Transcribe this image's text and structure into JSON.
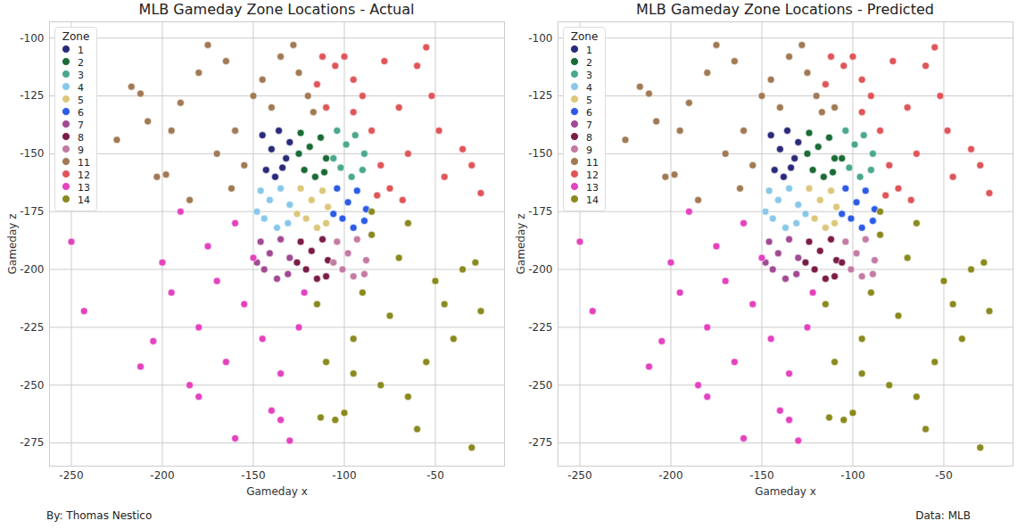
{
  "chart_data": [
    {
      "type": "scatter",
      "title": "MLB Gameday Zone Locations - Actual",
      "x_label": "Gameday x",
      "y_label": "Gameday z",
      "xlim": [
        -262,
        -12
      ],
      "ylim": [
        -285,
        -93
      ],
      "xticks": [
        -250,
        -200,
        -150,
        -100,
        -50
      ],
      "yticks": [
        -275,
        -250,
        -225,
        -200,
        -175,
        -150,
        -125,
        -100
      ],
      "grid": true,
      "legend": "upper left",
      "legend_title": "Zone",
      "series": [
        {
          "name": "1",
          "color": "#2b2a7a",
          "x": [
            -145,
            -140,
            -136,
            -132,
            -143,
            -138,
            -130,
            -134
          ],
          "y": [
            -142,
            -148,
            -140,
            -152,
            -157,
            -160,
            -145,
            -156
          ]
        },
        {
          "name": "2",
          "color": "#1a6b35",
          "x": [
            -124,
            -119,
            -113,
            -110,
            -122,
            -116,
            -111,
            -125
          ],
          "y": [
            -141,
            -147,
            -143,
            -152,
            -157,
            -160,
            -158,
            -150
          ]
        },
        {
          "name": "3",
          "color": "#4aa88e",
          "x": [
            -104,
            -99,
            -94,
            -89,
            -102,
            -96,
            -90,
            -106
          ],
          "y": [
            -140,
            -146,
            -142,
            -150,
            -156,
            -160,
            -157,
            -152
          ]
        },
        {
          "name": "4",
          "color": "#88c8ea",
          "x": [
            -146,
            -141,
            -135,
            -130,
            -144,
            -137,
            -131,
            -148
          ],
          "y": [
            -166,
            -170,
            -165,
            -172,
            -178,
            -182,
            -180,
            -175
          ]
        },
        {
          "name": "5",
          "color": "#dcc77a",
          "x": [
            -124,
            -118,
            -112,
            -109,
            -121,
            -115,
            -110,
            -126
          ],
          "y": [
            -165,
            -170,
            -166,
            -173,
            -178,
            -182,
            -180,
            -176
          ]
        },
        {
          "name": "6",
          "color": "#2c5be6",
          "x": [
            -104,
            -98,
            -93,
            -88,
            -101,
            -95,
            -89,
            -106
          ],
          "y": [
            -165,
            -171,
            -166,
            -174,
            -178,
            -182,
            -179,
            -176
          ]
        },
        {
          "name": "7",
          "color": "#a24a93",
          "x": [
            -146,
            -141,
            -135,
            -130,
            -144,
            -137,
            -131,
            -148
          ],
          "y": [
            -188,
            -193,
            -187,
            -195,
            -200,
            -204,
            -202,
            -197
          ]
        },
        {
          "name": "8",
          "color": "#7b1c47",
          "x": [
            -124,
            -118,
            -112,
            -109,
            -121,
            -115,
            -110,
            -126
          ],
          "y": [
            -188,
            -192,
            -187,
            -196,
            -200,
            -204,
            -203,
            -197
          ]
        },
        {
          "name": "9",
          "color": "#c47ba3",
          "x": [
            -104,
            -98,
            -93,
            -88,
            -101,
            -95,
            -89,
            -106
          ],
          "y": [
            -188,
            -193,
            -187,
            -196,
            -200,
            -203,
            -202,
            -197
          ]
        },
        {
          "name": "11",
          "color": "#a17a55",
          "x": [
            -225,
            -217,
            -212,
            -208,
            -203,
            -198,
            -190,
            -185,
            -180,
            -175,
            -165,
            -160,
            -155,
            -150,
            -145,
            -135,
            -128,
            -125,
            -120,
            -117,
            -170,
            -195,
            -162,
            -140
          ],
          "y": [
            -144,
            -121,
            -124,
            -136,
            -160,
            -159,
            -128,
            -170,
            -115,
            -103,
            -110,
            -140,
            -155,
            -125,
            -118,
            -108,
            -103,
            -115,
            -125,
            -132,
            -150,
            -140,
            -165,
            -130
          ]
        },
        {
          "name": "12",
          "color": "#e05559",
          "x": [
            -115,
            -112,
            -105,
            -100,
            -95,
            -90,
            -85,
            -80,
            -75,
            -70,
            -65,
            -60,
            -55,
            -52,
            -48,
            -45,
            -35,
            -30,
            -25,
            -82,
            -78,
            -110,
            -68,
            -95
          ],
          "y": [
            -120,
            -108,
            -112,
            -108,
            -118,
            -125,
            -140,
            -155,
            -165,
            -130,
            -150,
            -112,
            -104,
            -125,
            -140,
            -160,
            -148,
            -155,
            -167,
            -168,
            -110,
            -130,
            -170,
            -132
          ]
        },
        {
          "name": "13",
          "color": "#e442bf",
          "x": [
            -250,
            -243,
            -212,
            -205,
            -200,
            -195,
            -190,
            -185,
            -180,
            -175,
            -170,
            -165,
            -160,
            -155,
            -150,
            -145,
            -140,
            -135,
            -130,
            -125,
            -122,
            -160,
            -180,
            -135
          ],
          "y": [
            -188,
            -218,
            -242,
            -231,
            -197,
            -210,
            -175,
            -250,
            -225,
            -190,
            -205,
            -240,
            -273,
            -215,
            -195,
            -230,
            -261,
            -265,
            -274,
            -225,
            -210,
            -180,
            -255,
            -245
          ]
        },
        {
          "name": "14",
          "color": "#8a8a1e",
          "x": [
            -115,
            -110,
            -105,
            -100,
            -95,
            -90,
            -85,
            -80,
            -75,
            -70,
            -65,
            -60,
            -55,
            -50,
            -45,
            -40,
            -35,
            -30,
            -28,
            -25,
            -85,
            -113,
            -65,
            -95
          ],
          "y": [
            -215,
            -240,
            -265,
            -262,
            -230,
            -210,
            -185,
            -250,
            -220,
            -195,
            -255,
            -269,
            -240,
            -205,
            -215,
            -230,
            -200,
            -277,
            -197,
            -218,
            -175,
            -264,
            -180,
            -245
          ]
        }
      ]
    },
    {
      "type": "scatter",
      "title": "MLB Gameday Zone Locations - Predicted",
      "x_label": "Gameday x",
      "y_label": "Gameday z",
      "xlim": [
        -262,
        -12
      ],
      "ylim": [
        -285,
        -93
      ],
      "xticks": [
        -250,
        -200,
        -150,
        -100,
        -50
      ],
      "yticks": [
        -275,
        -250,
        -225,
        -200,
        -175,
        -150,
        -125,
        -100
      ],
      "grid": true,
      "legend": "upper left",
      "legend_title": "Zone",
      "series": [
        {
          "name": "1",
          "color": "#2b2a7a",
          "x": [
            -145,
            -140,
            -136,
            -132,
            -143,
            -138,
            -130,
            -134
          ],
          "y": [
            -142,
            -148,
            -140,
            -152,
            -157,
            -160,
            -145,
            -156
          ]
        },
        {
          "name": "2",
          "color": "#1a6b35",
          "x": [
            -124,
            -119,
            -113,
            -110,
            -122,
            -116,
            -111,
            -125,
            -106
          ],
          "y": [
            -141,
            -147,
            -143,
            -152,
            -157,
            -160,
            -158,
            -150,
            -152
          ]
        },
        {
          "name": "3",
          "color": "#4aa88e",
          "x": [
            -104,
            -99,
            -94,
            -89,
            -102,
            -96,
            -90
          ],
          "y": [
            -140,
            -146,
            -142,
            -150,
            -156,
            -160,
            -157
          ]
        },
        {
          "name": "4",
          "color": "#88c8ea",
          "x": [
            -146,
            -141,
            -135,
            -130,
            -144,
            -137,
            -131,
            -148,
            -126
          ],
          "y": [
            -166,
            -170,
            -165,
            -172,
            -178,
            -182,
            -180,
            -175,
            -176
          ]
        },
        {
          "name": "5",
          "color": "#dcc77a",
          "x": [
            -124,
            -118,
            -112,
            -109,
            -121,
            -115,
            -110
          ],
          "y": [
            -165,
            -170,
            -166,
            -173,
            -178,
            -182,
            -180
          ]
        },
        {
          "name": "6",
          "color": "#2c5be6",
          "x": [
            -104,
            -98,
            -93,
            -88,
            -101,
            -95,
            -89,
            -106
          ],
          "y": [
            -165,
            -171,
            -166,
            -174,
            -178,
            -182,
            -179,
            -176
          ]
        },
        {
          "name": "7",
          "color": "#a24a93",
          "x": [
            -146,
            -141,
            -135,
            -130,
            -144,
            -137,
            -131,
            -148
          ],
          "y": [
            -188,
            -193,
            -187,
            -195,
            -200,
            -204,
            -202,
            -197
          ]
        },
        {
          "name": "8",
          "color": "#7b1c47",
          "x": [
            -124,
            -118,
            -112,
            -109,
            -121,
            -115,
            -110,
            -126,
            -106
          ],
          "y": [
            -188,
            -192,
            -187,
            -196,
            -200,
            -204,
            -203,
            -197,
            -197
          ]
        },
        {
          "name": "9",
          "color": "#c47ba3",
          "x": [
            -104,
            -98,
            -93,
            -88,
            -101,
            -95,
            -89
          ],
          "y": [
            -188,
            -193,
            -187,
            -196,
            -200,
            -203,
            -202
          ]
        },
        {
          "name": "11",
          "color": "#a17a55",
          "x": [
            -225,
            -217,
            -212,
            -208,
            -203,
            -198,
            -190,
            -185,
            -180,
            -175,
            -165,
            -160,
            -155,
            -150,
            -145,
            -135,
            -128,
            -125,
            -120,
            -117,
            -170,
            -195,
            -162,
            -140,
            -110
          ],
          "y": [
            -144,
            -121,
            -124,
            -136,
            -160,
            -159,
            -128,
            -170,
            -115,
            -103,
            -110,
            -140,
            -155,
            -125,
            -118,
            -108,
            -103,
            -115,
            -125,
            -132,
            -150,
            -140,
            -165,
            -130,
            -130
          ]
        },
        {
          "name": "12",
          "color": "#e05559",
          "x": [
            -115,
            -112,
            -105,
            -100,
            -95,
            -90,
            -85,
            -80,
            -75,
            -70,
            -65,
            -60,
            -55,
            -52,
            -48,
            -45,
            -35,
            -30,
            -25,
            -82,
            -78,
            -68,
            -95
          ],
          "y": [
            -120,
            -108,
            -112,
            -108,
            -118,
            -125,
            -140,
            -155,
            -165,
            -130,
            -150,
            -112,
            -104,
            -125,
            -140,
            -160,
            -148,
            -155,
            -167,
            -168,
            -110,
            -170,
            -132
          ]
        },
        {
          "name": "13",
          "color": "#e442bf",
          "x": [
            -250,
            -243,
            -212,
            -205,
            -200,
            -195,
            -190,
            -185,
            -180,
            -175,
            -170,
            -165,
            -160,
            -155,
            -150,
            -145,
            -140,
            -135,
            -130,
            -125,
            -122,
            -160,
            -180,
            -135
          ],
          "y": [
            -188,
            -218,
            -242,
            -231,
            -197,
            -210,
            -175,
            -250,
            -225,
            -190,
            -205,
            -240,
            -273,
            -215,
            -195,
            -230,
            -261,
            -265,
            -274,
            -225,
            -210,
            -180,
            -255,
            -245
          ]
        },
        {
          "name": "14",
          "color": "#8a8a1e",
          "x": [
            -115,
            -110,
            -105,
            -100,
            -95,
            -90,
            -85,
            -80,
            -75,
            -70,
            -65,
            -60,
            -55,
            -50,
            -45,
            -40,
            -35,
            -30,
            -28,
            -25,
            -85,
            -113,
            -65,
            -95
          ],
          "y": [
            -215,
            -240,
            -265,
            -262,
            -230,
            -210,
            -185,
            -250,
            -220,
            -195,
            -255,
            -269,
            -240,
            -205,
            -215,
            -230,
            -200,
            -277,
            -197,
            -218,
            -175,
            -264,
            -180,
            -245
          ]
        }
      ]
    }
  ],
  "footer": {
    "left": "By: Thomas Nestico",
    "right": "Data: MLB"
  }
}
